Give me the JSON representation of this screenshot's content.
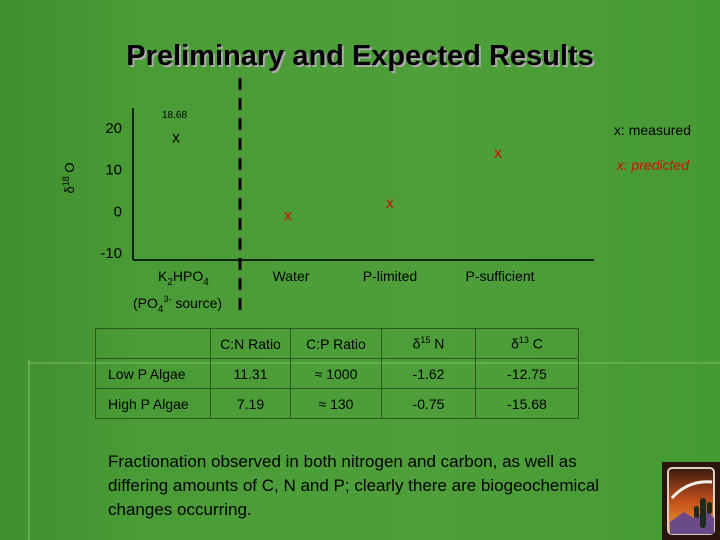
{
  "slide": {
    "title": "Preliminary and Expected Results",
    "summary": "Fractionation observed in both nitrogen and carbon, as well as differing amounts of C, N and P; clearly there are biogeochemical changes occurring."
  },
  "chart_data": {
    "type": "scatter",
    "ylabel_main": "δ",
    "ylabel_sup": "18",
    "ylabel_tail": " O",
    "ylim": [
      -10,
      20
    ],
    "yticks": [
      20,
      10,
      0,
      -10
    ],
    "top_value_label": "18.68",
    "categories": [
      "Water",
      "P-limited",
      "P-sufficient"
    ],
    "first_category": {
      "main": "K",
      "sub1": "2",
      "mid": "HPO",
      "sub2": "4"
    },
    "first_category_note": {
      "open": "(PO",
      "sub": "4",
      "sup": "3-",
      "close": " source)"
    },
    "legend": {
      "measured": "x: measured",
      "predicted": "x: predicted"
    },
    "marker": "x",
    "colors": {
      "measured": "#000000",
      "predicted": "#cc1100"
    },
    "series": [
      {
        "name": "x: measured",
        "points": [
          {
            "x": "K2HPO4",
            "y": 18.68
          }
        ]
      },
      {
        "name": "x: predicted",
        "points": [
          {
            "x": "Water",
            "y": 0
          },
          {
            "x": "P-limited",
            "y": 3
          },
          {
            "x": "P-sufficient",
            "y": 15
          }
        ]
      }
    ]
  },
  "table": {
    "headers": [
      {
        "text": ""
      },
      {
        "text": "C:N Ratio"
      },
      {
        "text": "C:P Ratio"
      },
      {
        "main": "δ",
        "sup": "15",
        "tail": " N"
      },
      {
        "main": "δ",
        "sup": "13",
        "tail": " C"
      }
    ],
    "rows": [
      {
        "label": "Low P Algae",
        "cn": "11.31",
        "cp": "≈ 1000",
        "d15n": "-1.62",
        "d13c": "-12.75"
      },
      {
        "label": "High P Algae",
        "cn": "7.19",
        "cp": "≈ 130",
        "d15n": "-0.75",
        "d13c": "-15.68"
      }
    ]
  },
  "logo": {
    "icon": "desert-cactus-logo"
  }
}
